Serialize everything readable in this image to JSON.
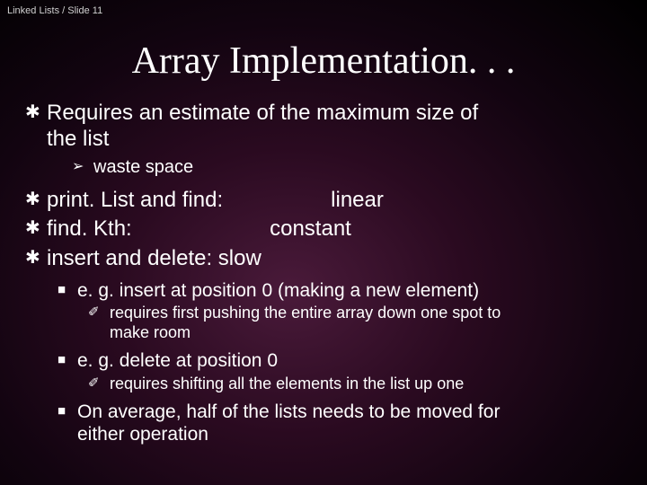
{
  "header": "Linked Lists / Slide 11",
  "title": "Array Implementation. . .",
  "bullets": {
    "b1_line1": "Requires an estimate of the maximum size of",
    "b1_line2": "the list",
    "b1_sub": "waste space",
    "b2_left": "print. List and find:",
    "b2_right": "linear",
    "b3_left": "find. Kth:",
    "b3_right": "constant",
    "b4": "insert and delete:  slow",
    "s1": "e. g. insert at position 0 (making a new element)",
    "s1a_line1": "requires first pushing the entire array down one spot to",
    "s1a_line2": "make room",
    "s2": "e. g. delete at position 0",
    "s2a": "requires shifting all the elements in the list up one",
    "s3_line1": "On average, half of the lists needs to be moved for",
    "s3_line2": "either operation"
  },
  "glyphs": {
    "star": "✱",
    "arrow": "➢",
    "square": "■",
    "folder": "✐"
  },
  "gap": {
    "b2": "                  ",
    "b3": "                       "
  },
  "style": {
    "title_color": "#ffffff",
    "text_color": "#ffffff",
    "header_color": "#d0d0d0",
    "title_fontsize": 42,
    "lvl1_fontsize": 24,
    "lvl2_fontsize": 20,
    "lvl3_fontsize": 21,
    "lvl4_fontsize": 18,
    "bg_gradient_center": "#4a1a3a",
    "bg_gradient_mid": "#2a0a20",
    "bg_gradient_outer": "#000000"
  }
}
